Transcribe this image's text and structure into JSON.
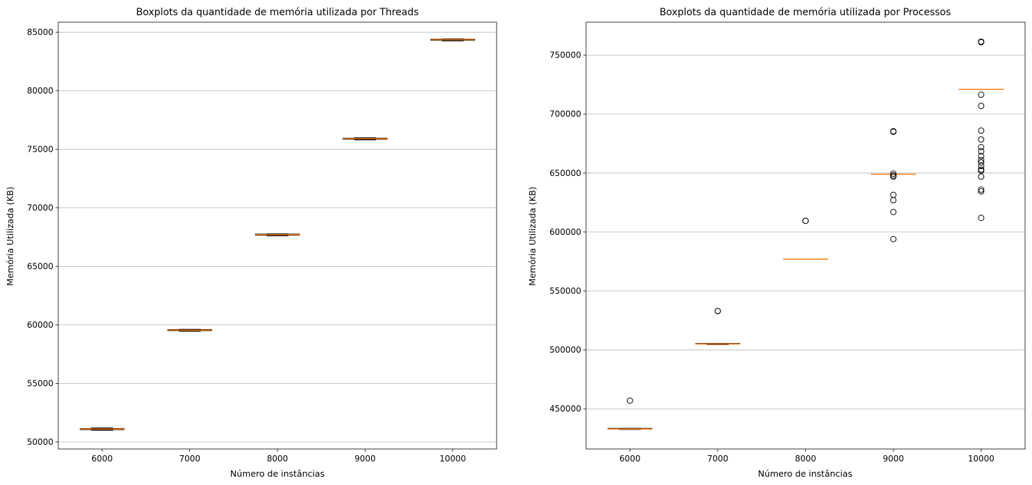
{
  "colors": {
    "median": "#ff7f0e",
    "box": "#000000",
    "grid": "#b0b0b0",
    "flier": "#000000"
  },
  "chart_data": [
    {
      "type": "box",
      "title": "Boxplots da quantidade de memória utilizada por Threads",
      "xlabel": "Número de instâncias",
      "ylabel": "Memória Utilizada (KB)",
      "categories": [
        "6000",
        "7000",
        "8000",
        "9000",
        "10000"
      ],
      "ylim": [
        49400,
        85850
      ],
      "yticks": [
        50000,
        55000,
        60000,
        65000,
        70000,
        75000,
        80000,
        85000
      ],
      "grid": "y",
      "boxes": [
        {
          "whislo": 51000,
          "q1": 51050,
          "med": 51100,
          "q3": 51150,
          "whishi": 51200,
          "fliers": []
        },
        {
          "whislo": 59450,
          "q1": 59500,
          "med": 59550,
          "q3": 59600,
          "whishi": 59620,
          "fliers": []
        },
        {
          "whislo": 67600,
          "q1": 67650,
          "med": 67700,
          "q3": 67750,
          "whishi": 67770,
          "fliers": []
        },
        {
          "whislo": 75800,
          "q1": 75850,
          "med": 75900,
          "q3": 75950,
          "whishi": 75980,
          "fliers": []
        },
        {
          "whislo": 84250,
          "q1": 84300,
          "med": 84350,
          "q3": 84400,
          "whishi": 84420,
          "fliers": []
        }
      ]
    },
    {
      "type": "box",
      "title": "Boxplots da quantidade de memória utilizada por Processos",
      "xlabel": "Número de instâncias",
      "ylabel": "Memória Utilizada (KB)",
      "categories": [
        "6000",
        "7000",
        "8000",
        "9000",
        "10000"
      ],
      "ylim": [
        416000,
        778000
      ],
      "yticks": [
        450000,
        500000,
        550000,
        600000,
        650000,
        700000,
        750000
      ],
      "grid": "y",
      "boxes": [
        {
          "whislo": 432500,
          "q1": 433000,
          "med": 433000,
          "q3": 433500,
          "whishi": 433500,
          "fliers": [
            457000
          ]
        },
        {
          "whislo": 504500,
          "q1": 505000,
          "med": 505000,
          "q3": 505500,
          "whishi": 505500,
          "fliers": [
            533000,
            533000
          ]
        },
        {
          "whislo": 577000,
          "q1": 577000,
          "med": 577000,
          "q3": 577000,
          "whishi": 577000,
          "fliers": [
            609500,
            609500
          ]
        },
        {
          "whislo": 649000,
          "q1": 649000,
          "med": 649000,
          "q3": 649000,
          "whishi": 649000,
          "fliers": [
            685000,
            685500,
            649500,
            648000,
            647000,
            631500,
            627000,
            617000,
            594000
          ]
        },
        {
          "whislo": 721000,
          "q1": 721000,
          "med": 721000,
          "q3": 721000,
          "whishi": 721000,
          "fliers": [
            761000,
            761500,
            716500,
            707000,
            686000,
            678500,
            672000,
            668500,
            664500,
            661000,
            659000,
            656000,
            653000,
            652000,
            647000,
            636000,
            634500,
            612000
          ]
        }
      ]
    }
  ]
}
